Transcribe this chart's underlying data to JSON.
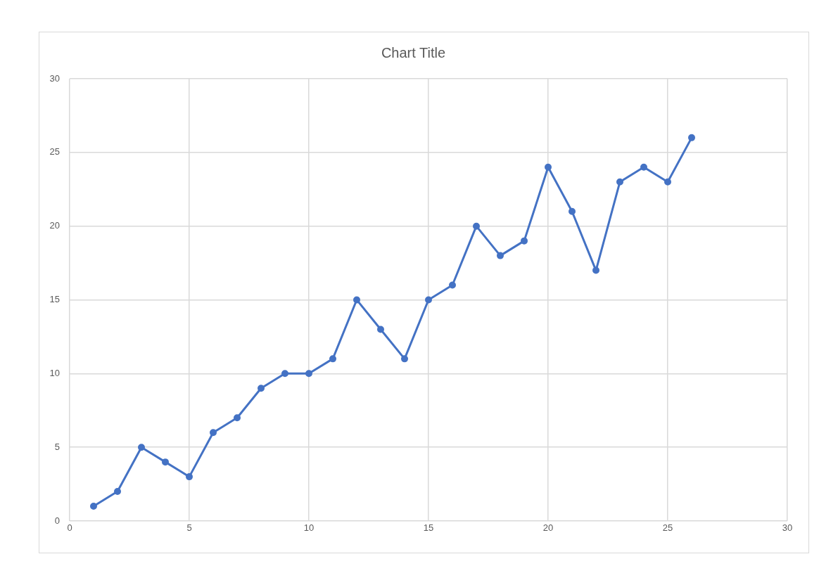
{
  "chart_data": {
    "type": "line",
    "title": "Chart Title",
    "x": [
      1,
      2,
      3,
      4,
      5,
      6,
      7,
      8,
      9,
      10,
      11,
      12,
      13,
      14,
      15,
      16,
      17,
      18,
      19,
      20,
      21,
      22,
      23,
      24,
      25,
      26
    ],
    "series": [
      {
        "color": "#4472c4",
        "values": [
          1,
          2,
          5,
          4,
          3,
          6,
          7,
          9,
          10,
          10,
          11,
          15,
          13,
          11,
          15,
          16,
          20,
          18,
          19,
          24,
          21,
          17,
          23,
          24,
          23,
          26
        ]
      }
    ],
    "xlim": [
      0,
      30
    ],
    "xticks": [
      0,
      5,
      10,
      15,
      20,
      25,
      30
    ],
    "ylim": [
      0,
      30
    ],
    "yticks": [
      0,
      5,
      10,
      15,
      20,
      25,
      30
    ],
    "grid": true,
    "marker": "circle",
    "line_style": "solid"
  }
}
